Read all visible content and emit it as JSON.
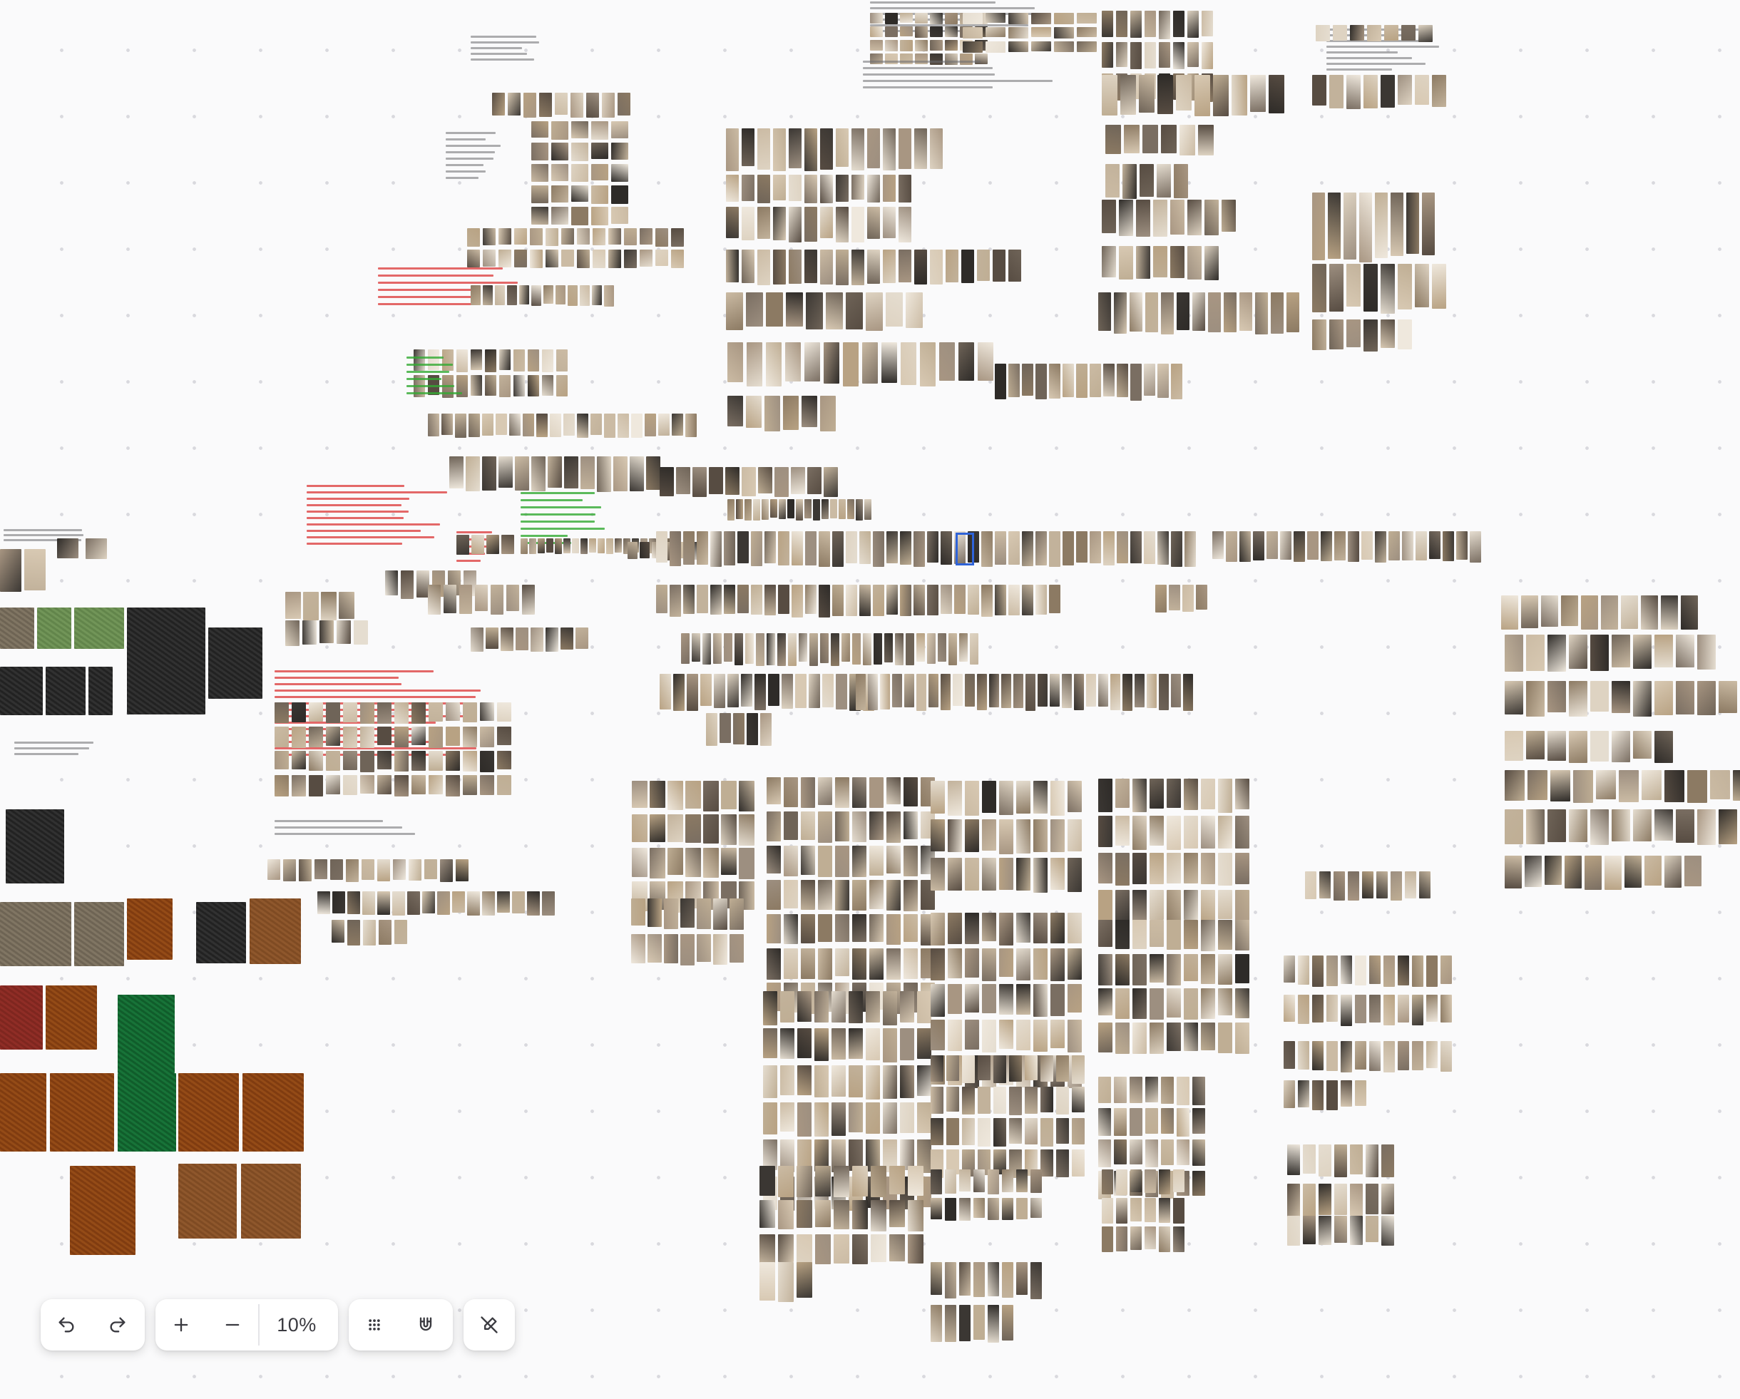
{
  "toolbar": {
    "undo_icon": "undo-icon",
    "redo_icon": "redo-icon",
    "zoom_in_icon": "plus-icon",
    "zoom_out_icon": "minus-icon",
    "zoom_level": "10%",
    "grid_icon": "grid-dots-icon",
    "snap_icon": "magnet-icon",
    "connector_icon": "pen-off-icon"
  },
  "colors": {
    "canvas_background": "#fafafb",
    "grid_dot": "#d9d9de",
    "toolbar_background": "#ffffff",
    "icon": "#3a3a40",
    "selection": "#2f63d8"
  },
  "palette": [
    "#cbbba4",
    "#b8a283",
    "#8c7a63",
    "#e5ddd0",
    "#3b3733",
    "#7a6e62",
    "#d8c9b3",
    "#a89682",
    "#574c42",
    "#efe8dd",
    "#9d8f80",
    "#c2b29b",
    "#6f6458",
    "#2e2b28",
    "#bfae94",
    "#ded3c2"
  ],
  "textures": {
    "beige": [
      "#b5ad9f",
      "#9b9487",
      "#c8c1b4"
    ],
    "sage": [
      "#9eb88a",
      "#b7cea3"
    ],
    "grey": [
      "#707070",
      "#4e4e4e",
      "#8a8a8a"
    ],
    "camel": [
      "#c28a4d",
      "#a96f35",
      "#d9a164"
    ],
    "green": [
      "#3f9a69",
      "#5fbf88"
    ],
    "rose": [
      "#bf6b63",
      "#a95a50"
    ],
    "tan": [
      "#b48a5f",
      "#caa177"
    ]
  }
}
